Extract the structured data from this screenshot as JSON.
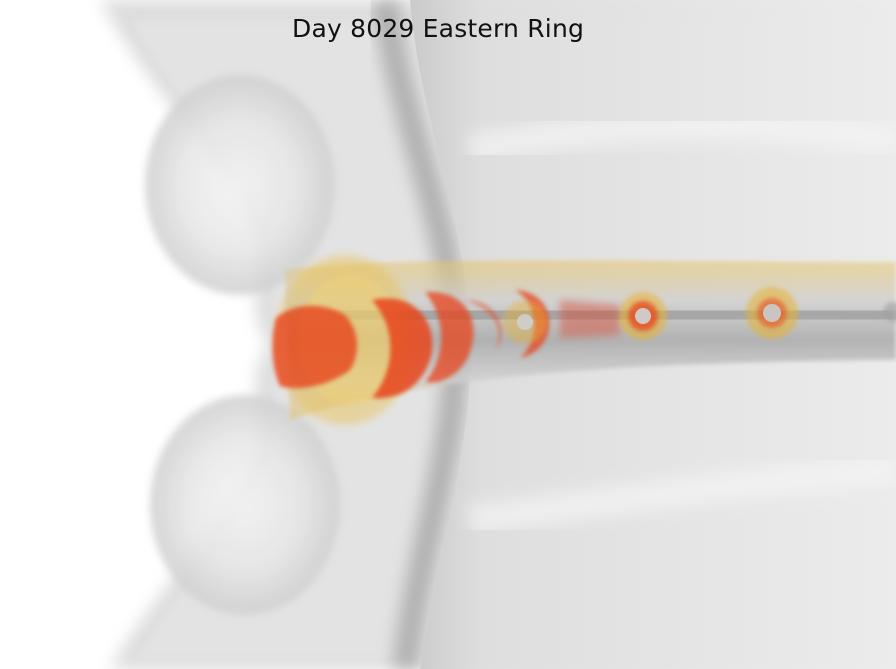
{
  "title": "Day 8029 Eastern Ring",
  "colors": {
    "background": "#ffffff",
    "shell_gray": "#9a9a9a",
    "shell_light": "#e2e2e2",
    "jet_yellow": "#e8b430",
    "jet_red": "#e8441c",
    "jet_core": "#8c8c8c"
  }
}
